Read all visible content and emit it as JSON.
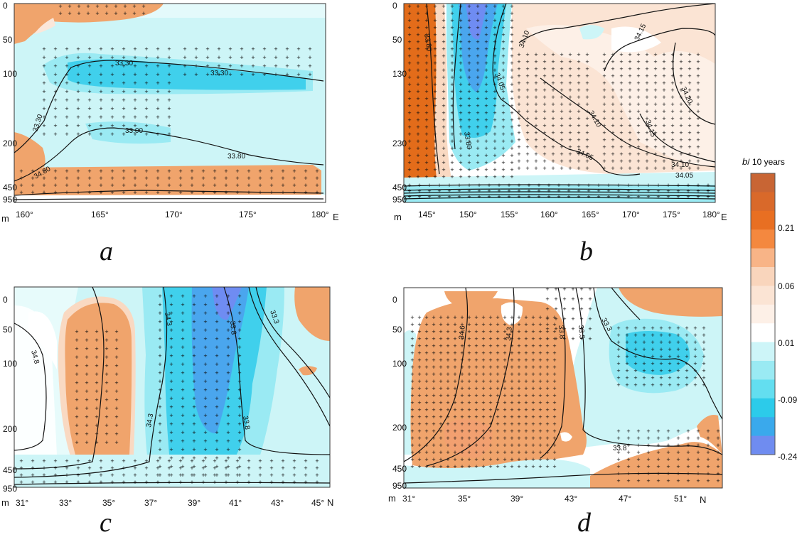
{
  "colors": {
    "pos_strong": "#e36c1a",
    "pos_mid": "#f0a46c",
    "pos_light": "#f9d9c2",
    "pos_faint": "#fdeee4",
    "neg_faint": "#cdf5f7",
    "neg_light": "#9aeaf3",
    "neg_mid": "#40d0ec",
    "neg_strong": "#4aa6ee",
    "neg_deep": "#6f8cf2"
  },
  "legend": {
    "title_symbol": "b",
    "title_suffix": "/ 10 years",
    "tick_labels": [
      "0.21",
      "0.06",
      "0.01",
      "-0.09",
      "-0.24"
    ],
    "bins": [
      "#c86534",
      "#d9692a",
      "#e86f22",
      "#f4883f",
      "#f8b487",
      "#f9d5bc",
      "#fbe4d4",
      "#fdf0e7",
      "#ffffff",
      "#cdf5f8",
      "#9aeaf3",
      "#63def0",
      "#2ccbea",
      "#3aa9ec",
      "#6f8cf0"
    ]
  },
  "chart_data": [
    {
      "id": "a",
      "type": "heatmap",
      "panel_letter": "a",
      "y_unit": "m",
      "x_suffix": "E",
      "y_ticks": [
        "0",
        "50",
        "100",
        "200",
        "450",
        "950"
      ],
      "x_ticks": [
        "160°",
        "165°",
        "170°",
        "175°",
        "180°"
      ],
      "contour_labels": [
        "33.30",
        "33.30",
        "33.30",
        "33.00",
        "33.80",
        "34.80"
      ]
    },
    {
      "id": "b",
      "type": "heatmap",
      "panel_letter": "b",
      "y_unit": "m",
      "x_suffix": "E",
      "y_ticks": [
        "0",
        "50",
        "130",
        "230",
        "450",
        "950"
      ],
      "x_ticks": [
        "145°",
        "150°",
        "155°",
        "160°",
        "165°",
        "170°",
        "175°",
        "180°"
      ],
      "contour_labels": [
        "33.80",
        "34.10",
        "34.15",
        "34.05",
        "34.10",
        "34.20",
        "34.15",
        "33.80",
        "34.05",
        "34.10",
        "34.05"
      ]
    },
    {
      "id": "c",
      "type": "heatmap",
      "panel_letter": "c",
      "y_unit": "m",
      "x_suffix": "N",
      "y_ticks": [
        "0",
        "50",
        "100",
        "200",
        "450",
        "950"
      ],
      "x_ticks": [
        "31°",
        "33°",
        "35°",
        "37°",
        "39°",
        "41°",
        "43°",
        "45°"
      ],
      "contour_labels": [
        "34.8",
        "34.3",
        "33.8",
        "33.3",
        "34.3",
        "33.8"
      ]
    },
    {
      "id": "d",
      "type": "heatmap",
      "panel_letter": "d",
      "y_unit": "m",
      "x_suffix": "N",
      "y_ticks": [
        "0",
        "50",
        "100",
        "200",
        "450",
        "950"
      ],
      "x_ticks": [
        "31°",
        "35°",
        "39°",
        "43°",
        "47°",
        "51°"
      ],
      "contour_labels": [
        "34.6",
        "34.3",
        "33.8",
        "33.5",
        "33.3",
        "33.8"
      ]
    }
  ]
}
